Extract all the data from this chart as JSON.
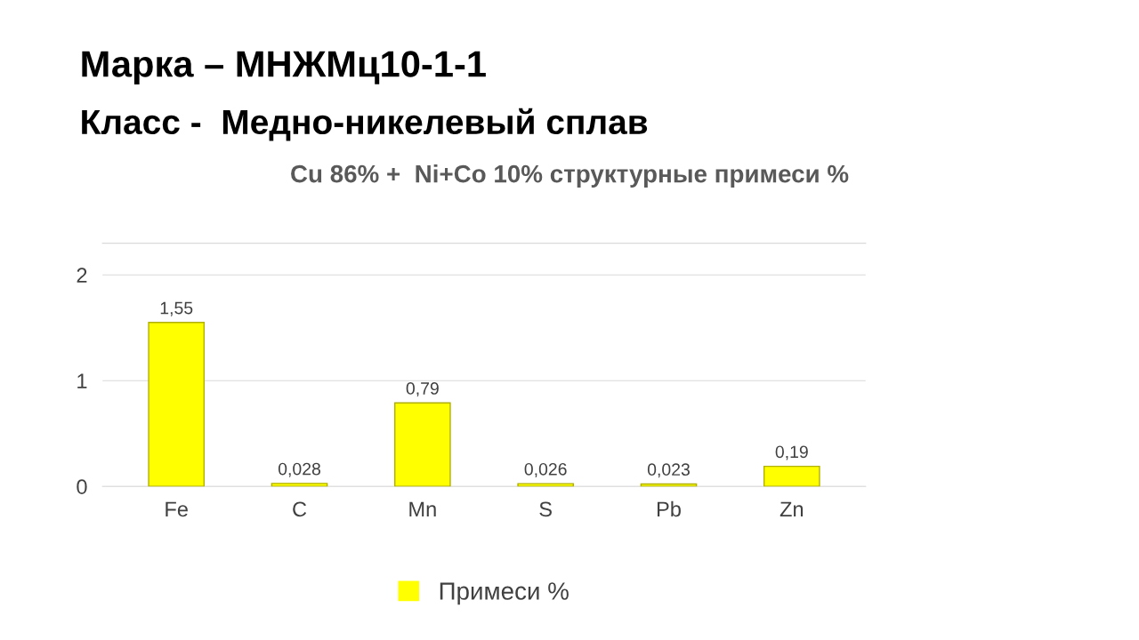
{
  "chart_data": {
    "type": "bar",
    "title": "Марка – МНЖМц10-1-1",
    "subtitle": "Класс -  Медно-никелевый сплав",
    "annotations": [
      "Cu 86% +  Ni+Co 10% структурные примеси %"
    ],
    "categories": [
      "Fe",
      "C",
      "Mn",
      "S",
      "Pb",
      "Zn"
    ],
    "series": [
      {
        "name": "Примеси %",
        "color": "#ffff00",
        "values": [
          1.55,
          0.028,
          0.79,
          0.026,
          0.023,
          0.19
        ],
        "value_labels": [
          "1,55",
          "0,028",
          "0,79",
          "0,026",
          "0,023",
          "0,19"
        ]
      }
    ],
    "ylim": [
      0,
      2.3
    ],
    "yticks": [
      0,
      1,
      2
    ],
    "grid": "y",
    "legend": "bottom"
  }
}
